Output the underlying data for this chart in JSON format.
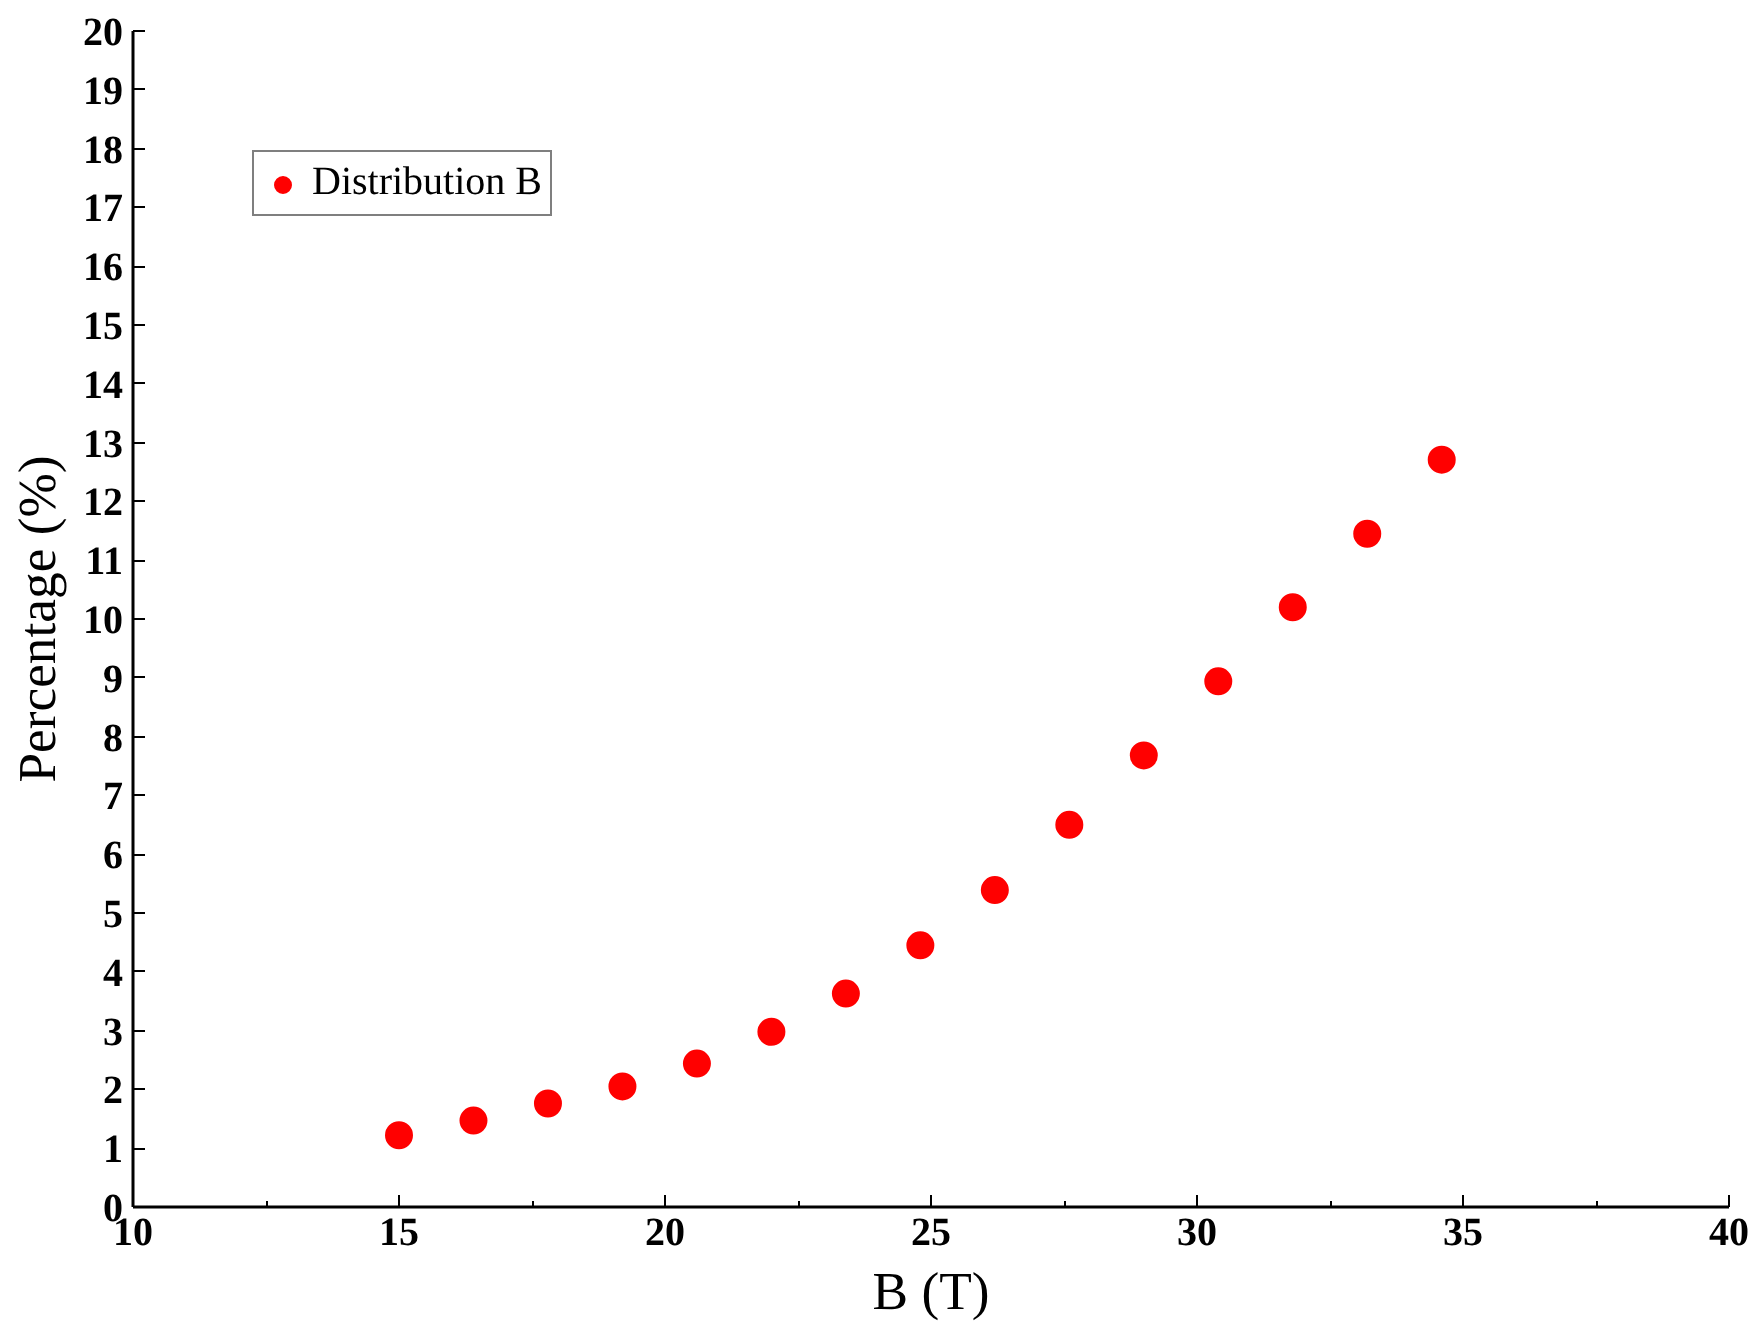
{
  "chart_data": {
    "type": "scatter",
    "xlabel": "B (T)",
    "ylabel": "Percentage (%)",
    "xlim": [
      10,
      40
    ],
    "xticks": [
      10,
      15,
      20,
      25,
      30,
      35,
      40
    ],
    "ylim": [
      0,
      20
    ],
    "yticks": [
      0,
      1,
      2,
      3,
      4,
      5,
      6,
      7,
      8,
      9,
      10,
      11,
      12,
      13,
      14,
      15,
      16,
      17,
      18,
      19,
      20
    ],
    "grid": false,
    "legend": "top left",
    "marker": "circle",
    "series": [
      {
        "name": "Distribution B",
        "color": "#ff0000",
        "x": [
          15.0,
          16.4,
          17.8,
          19.2,
          20.6,
          22.0,
          23.4,
          24.8,
          26.2,
          27.6,
          29.0,
          30.4,
          31.8,
          33.2,
          34.6
        ],
        "values": [
          1.22,
          1.47,
          1.76,
          2.05,
          2.44,
          2.98,
          3.63,
          4.45,
          5.39,
          6.5,
          7.68,
          8.94,
          10.2,
          11.45,
          12.71
        ]
      }
    ]
  }
}
